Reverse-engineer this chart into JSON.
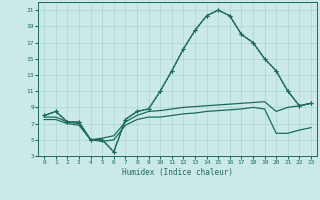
{
  "xlabel": "Humidex (Indice chaleur)",
  "xlim": [
    -0.5,
    23.5
  ],
  "ylim": [
    3,
    22
  ],
  "yticks": [
    3,
    5,
    7,
    9,
    11,
    13,
    15,
    17,
    19,
    21
  ],
  "xticks": [
    0,
    1,
    2,
    3,
    4,
    5,
    6,
    7,
    8,
    9,
    10,
    11,
    12,
    13,
    14,
    15,
    16,
    17,
    18,
    19,
    20,
    21,
    22,
    23
  ],
  "bg_color": "#cce9e9",
  "line_color": "#1a6b5a",
  "grid_color": "#aad4d4",
  "lines": [
    {
      "x": [
        0,
        1,
        2,
        3,
        4,
        5,
        6,
        7,
        8,
        9,
        10,
        11,
        12,
        13,
        14,
        15,
        16,
        17,
        18,
        19,
        20,
        21,
        22,
        23
      ],
      "y": [
        8.0,
        8.5,
        7.2,
        7.2,
        5.0,
        5.0,
        3.5,
        7.5,
        8.5,
        8.8,
        11.0,
        13.5,
        16.2,
        18.5,
        20.3,
        21.0,
        20.3,
        18.0,
        17.0,
        15.0,
        13.5,
        11.0,
        9.2,
        9.5
      ],
      "marker": "+",
      "linestyle": ":",
      "linewidth": 1.0
    },
    {
      "x": [
        0,
        1,
        2,
        3,
        4,
        5,
        6,
        7,
        8,
        9,
        10,
        11,
        12,
        13,
        14,
        15,
        16,
        17,
        18,
        19,
        20,
        21,
        22,
        23
      ],
      "y": [
        8.0,
        8.5,
        7.2,
        7.2,
        5.0,
        5.0,
        3.5,
        7.5,
        8.5,
        8.8,
        11.0,
        13.5,
        16.2,
        18.5,
        20.3,
        21.0,
        20.3,
        18.0,
        17.0,
        15.0,
        13.5,
        11.0,
        9.2,
        9.5
      ],
      "marker": "+",
      "linestyle": "-",
      "linewidth": 1.0
    },
    {
      "x": [
        0,
        1,
        2,
        3,
        4,
        5,
        6,
        7,
        8,
        9,
        10,
        11,
        12,
        13,
        14,
        15,
        16,
        17,
        18,
        19,
        20,
        21,
        22,
        23
      ],
      "y": [
        7.8,
        7.8,
        7.2,
        7.0,
        5.0,
        5.2,
        5.5,
        7.2,
        8.0,
        8.5,
        8.6,
        8.8,
        9.0,
        9.1,
        9.2,
        9.3,
        9.4,
        9.5,
        9.6,
        9.7,
        8.5,
        9.0,
        9.2,
        9.5
      ],
      "marker": null,
      "linestyle": "-",
      "linewidth": 0.9
    },
    {
      "x": [
        0,
        1,
        2,
        3,
        4,
        5,
        6,
        7,
        8,
        9,
        10,
        11,
        12,
        13,
        14,
        15,
        16,
        17,
        18,
        19,
        20,
        21,
        22,
        23
      ],
      "y": [
        7.5,
        7.5,
        7.0,
        6.8,
        5.0,
        4.8,
        5.0,
        6.8,
        7.5,
        7.8,
        7.8,
        8.0,
        8.2,
        8.3,
        8.5,
        8.6,
        8.7,
        8.8,
        9.0,
        8.8,
        5.8,
        5.8,
        6.2,
        6.5
      ],
      "marker": null,
      "linestyle": "-",
      "linewidth": 0.9
    }
  ]
}
